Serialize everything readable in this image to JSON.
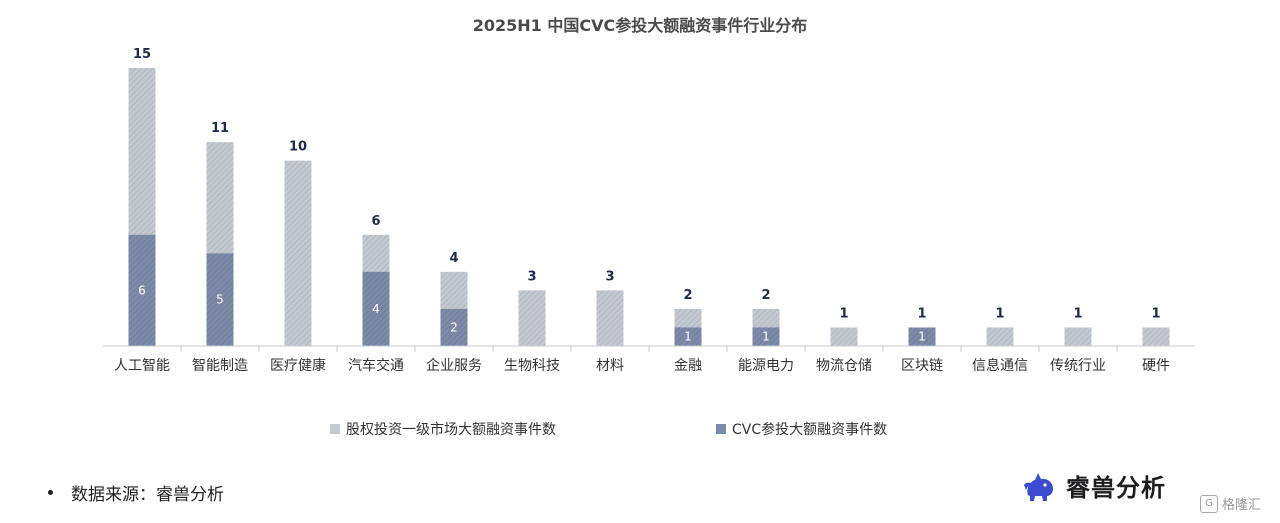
{
  "chart_data": {
    "type": "bar",
    "title": "2025H1 中国CVC参投大额融资事件行业分布",
    "categories": [
      "人工智能",
      "智能制造",
      "医疗健康",
      "汽车交通",
      "企业服务",
      "生物科技",
      "材料",
      "金融",
      "能源电力",
      "物流仓储",
      "区块链",
      "信息通信",
      "传统行业",
      "硬件"
    ],
    "series": [
      {
        "name": "股权投资一级市场大额融资事件数",
        "values": [
          15,
          11,
          10,
          6,
          4,
          3,
          3,
          2,
          2,
          1,
          1,
          1,
          1,
          1
        ],
        "color": "#c4c9cf"
      },
      {
        "name": "CVC参投大额融资事件数",
        "values": [
          6,
          5,
          0,
          4,
          2,
          0,
          0,
          1,
          1,
          0,
          1,
          0,
          0,
          0
        ],
        "color": "#7d8aa8"
      }
    ],
    "legend_position": "bottom",
    "grid": false,
    "ylim": [
      0,
      16
    ]
  },
  "source": {
    "text": "数据来源：睿兽分析"
  },
  "logo": {
    "name": "睿兽分析",
    "icon": "unicorn-logo-icon",
    "color": "#3d4bd1"
  },
  "watermark": {
    "text": "格隆汇",
    "icon": "G"
  }
}
